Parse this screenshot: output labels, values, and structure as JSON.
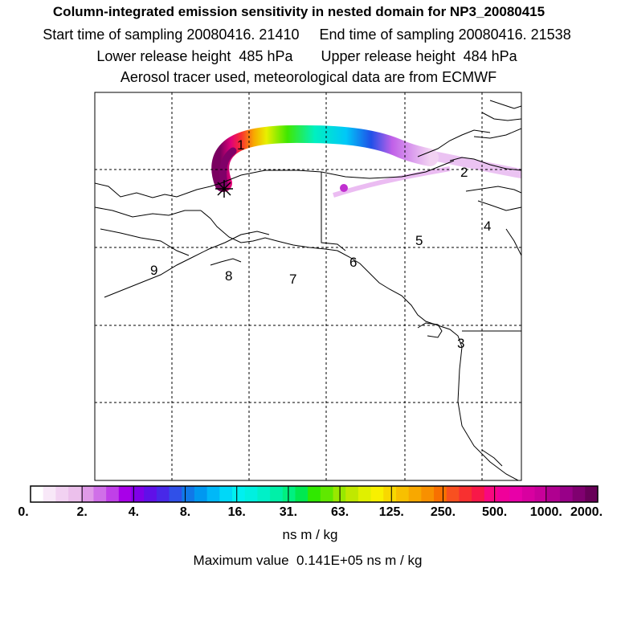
{
  "header": {
    "title": "Column-integrated emission sensitivity in nested domain for NP3_20080415",
    "line2": "Start time of sampling 20080416. 21410     End time of sampling 20080416. 21538",
    "line3": "Lower release height  485 hPa       Upper release height  484 hPa",
    "line4": "Aerosol tracer used, meteorological data are from ECMWF"
  },
  "map": {
    "region_labels": [
      "1",
      "2",
      "3",
      "4",
      "5",
      "6",
      "7",
      "8",
      "9"
    ],
    "release_marker": "release-point-star-icon"
  },
  "colorbar": {
    "ticks": [
      "0.",
      "2.",
      "4.",
      "8.",
      "16.",
      "31.",
      "63.",
      "125.",
      "250.",
      "500.",
      "1000.",
      "2000."
    ],
    "colors": [
      "#ffffff",
      "#f8e8f8",
      "#f2d2f2",
      "#ecc0ec",
      "#e09ae8",
      "#d070e8",
      "#c040e8",
      "#a800e8",
      "#8000e8",
      "#6010e8",
      "#4828e8",
      "#3050e8",
      "#1078e8",
      "#0098f0",
      "#00b8f8",
      "#00d8f8",
      "#00f0f0",
      "#00f0e0",
      "#00f0c8",
      "#00f0a8",
      "#00f080",
      "#00e850",
      "#30e800",
      "#60e800",
      "#98e800",
      "#c0e800",
      "#e0f000",
      "#f8f000",
      "#f8d800",
      "#f8c000",
      "#f8a800",
      "#f89000",
      "#f87000",
      "#f85020",
      "#f83030",
      "#f81848",
      "#f80880",
      "#f0009a",
      "#e800a8",
      "#d800a0",
      "#c8009a",
      "#b00090",
      "#980088",
      "#800070",
      "#680058"
    ]
  },
  "footer": {
    "units": "ns m / kg",
    "maximum": "Maximum value  0.141E+05 ns m / kg"
  }
}
